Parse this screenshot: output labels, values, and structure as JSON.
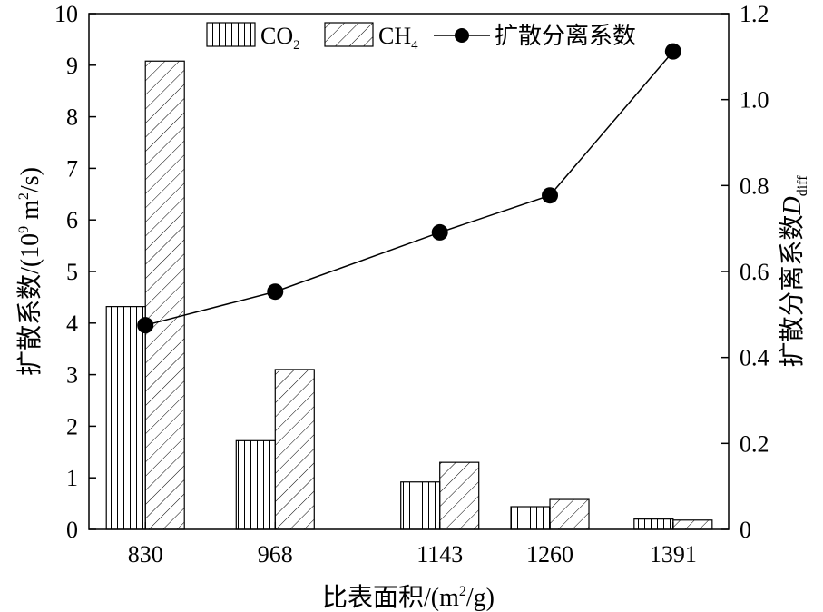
{
  "chart_data": {
    "type": "bar",
    "x": [
      830,
      968,
      1143,
      1260,
      1391
    ],
    "categories": [
      "830",
      "968",
      "1143",
      "1260",
      "1391"
    ],
    "xlabel": {
      "main": "比表面积/(m",
      "sup": "2",
      "tail": "/g)"
    },
    "ylabel_left": {
      "main": "扩散系数/(10",
      "sup": "9",
      "mid": " m",
      "sup2": "2",
      "tail": "/s)"
    },
    "ylabel_right": {
      "main": "扩散分离系数",
      "italic": "D",
      "sub": "diff"
    },
    "ylim_left": [
      0,
      10
    ],
    "yticks_left": [
      "0",
      "1",
      "2",
      "3",
      "4",
      "5",
      "6",
      "7",
      "8",
      "9",
      "10"
    ],
    "ylim_right": [
      0,
      1.2
    ],
    "yticks_right": [
      "0",
      "0.2",
      "0.4",
      "0.6",
      "0.8",
      "1.0",
      "1.2"
    ],
    "grid": false,
    "legend_position": "top",
    "series": [
      {
        "name": "CO",
        "name_sub": "2",
        "kind": "bar",
        "pattern": "vertical-lines",
        "axis": "left",
        "values": [
          4.32,
          1.72,
          0.92,
          0.44,
          0.2
        ]
      },
      {
        "name": "CH",
        "name_sub": "4",
        "kind": "bar",
        "pattern": "diagonal-hatch",
        "axis": "left",
        "values": [
          9.08,
          3.1,
          1.3,
          0.58,
          0.18
        ]
      },
      {
        "name": "扩散分离系数",
        "kind": "line",
        "marker": "filled-circle",
        "axis": "right",
        "values": [
          0.475,
          0.553,
          0.691,
          0.777,
          1.112
        ]
      }
    ]
  }
}
